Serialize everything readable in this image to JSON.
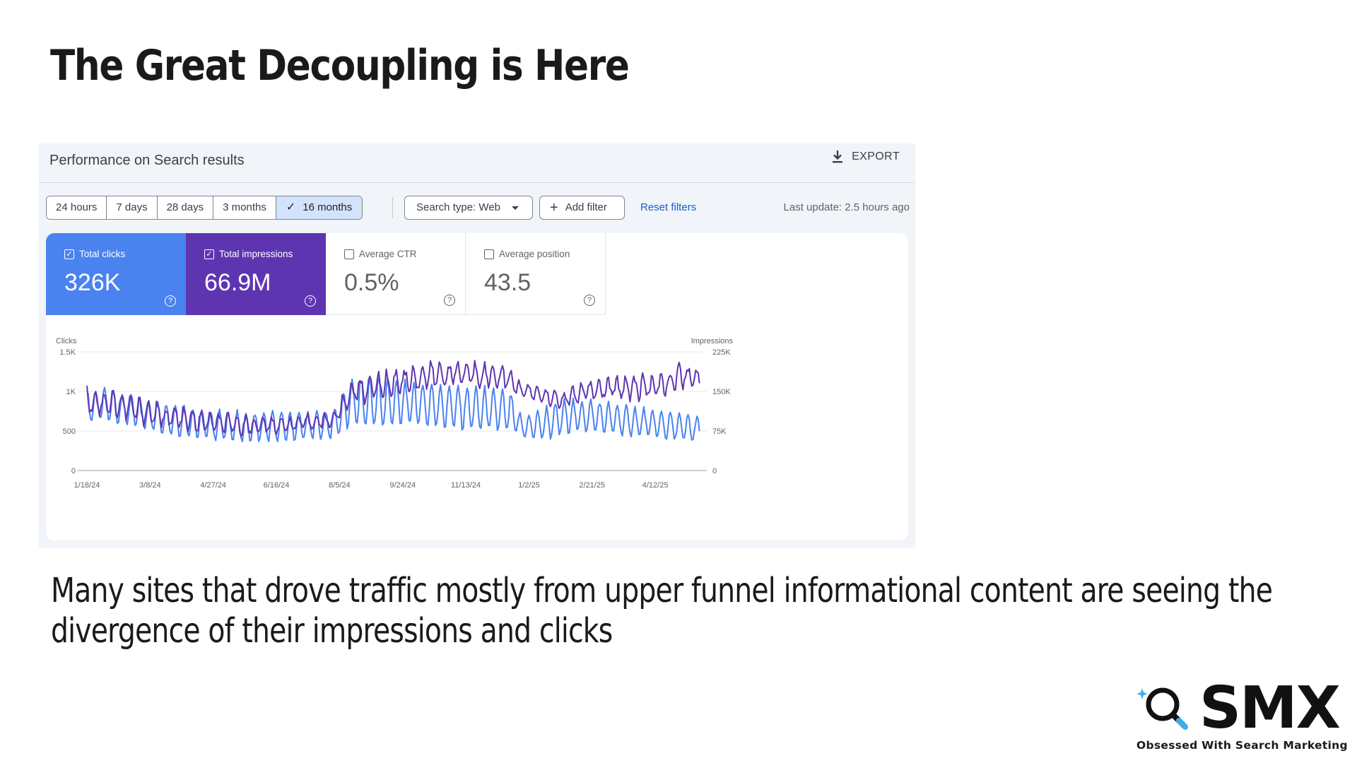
{
  "slide": {
    "title": "The Great Decoupling is Here",
    "body": "Many sites that drove traffic mostly from upper funnel informational content are seeing the divergence of their impressions and clicks"
  },
  "panel": {
    "title": "Performance on Search results",
    "export_label": "EXPORT",
    "date_ranges": [
      "24 hours",
      "7 days",
      "28 days",
      "3 months",
      "16 months"
    ],
    "active_range": "16 months",
    "search_type": "Search type: Web",
    "add_filter": "Add filter",
    "reset_filters": "Reset filters",
    "last_update": "Last update: 2.5 hours ago"
  },
  "metrics": {
    "clicks": {
      "label": "Total clicks",
      "value": "326K",
      "checked": true
    },
    "impressions": {
      "label": "Total impressions",
      "value": "66.9M",
      "checked": true
    },
    "ctr": {
      "label": "Average CTR",
      "value": "0.5%",
      "checked": false
    },
    "position": {
      "label": "Average position",
      "value": "43.5",
      "checked": false
    }
  },
  "colors": {
    "clicks": "#4a82f0",
    "impressions": "#5e35b1",
    "link": "#1a5fc9",
    "smx_accent": "#3bb0e6"
  },
  "chart_data": {
    "type": "line",
    "left_axis_label": "Clicks",
    "right_axis_label": "Impressions",
    "left_ticks": [
      "0",
      "500",
      "1K",
      "1.5K"
    ],
    "right_ticks": [
      "0",
      "75K",
      "150K",
      "225K"
    ],
    "left_ylim": [
      0,
      1500
    ],
    "right_ylim": [
      0,
      225000
    ],
    "x_ticks": [
      "1/18/24",
      "3/8/24",
      "4/27/24",
      "6/16/24",
      "8/5/24",
      "9/24/24",
      "11/13/24",
      "1/2/25",
      "2/21/25",
      "4/12/25"
    ],
    "x_tick_days": [
      0,
      50,
      100,
      150,
      200,
      250,
      300,
      350,
      400,
      450
    ],
    "total_days": 488,
    "series": [
      {
        "name": "Total clicks",
        "axis": "left",
        "baseline": [
          [
            0,
            820
          ],
          [
            15,
            830
          ],
          [
            30,
            780
          ],
          [
            50,
            700
          ],
          [
            70,
            640
          ],
          [
            90,
            590
          ],
          [
            110,
            560
          ],
          [
            130,
            550
          ],
          [
            150,
            555
          ],
          [
            170,
            560
          ],
          [
            195,
            585
          ],
          [
            210,
            870
          ],
          [
            240,
            860
          ],
          [
            270,
            835
          ],
          [
            310,
            780
          ],
          [
            335,
            740
          ],
          [
            345,
            540
          ],
          [
            365,
            600
          ],
          [
            380,
            690
          ],
          [
            400,
            690
          ],
          [
            430,
            620
          ],
          [
            460,
            570
          ],
          [
            485,
            520
          ]
        ],
        "weekly_amplitude": [
          [
            0,
            200
          ],
          [
            195,
            170
          ],
          [
            210,
            310
          ],
          [
            335,
            250
          ],
          [
            345,
            110
          ],
          [
            365,
            210
          ],
          [
            485,
            160
          ]
        ]
      },
      {
        "name": "Total impressions",
        "axis": "right",
        "baseline": [
          [
            0,
            132000
          ],
          [
            20,
            128000
          ],
          [
            40,
            115000
          ],
          [
            60,
            103000
          ],
          [
            90,
            92000
          ],
          [
            130,
            85000
          ],
          [
            160,
            87000
          ],
          [
            195,
            96000
          ],
          [
            210,
            150000
          ],
          [
            240,
            165000
          ],
          [
            270,
            180000
          ],
          [
            300,
            185000
          ],
          [
            330,
            178000
          ],
          [
            345,
            152000
          ],
          [
            365,
            140000
          ],
          [
            375,
            132000
          ],
          [
            395,
            150000
          ],
          [
            420,
            157000
          ],
          [
            455,
            160000
          ],
          [
            470,
            178000
          ],
          [
            485,
            175000
          ]
        ],
        "weekly_amplitude": [
          [
            0,
            22000
          ],
          [
            195,
            12000
          ],
          [
            210,
            22000
          ],
          [
            330,
            20000
          ],
          [
            345,
            10000
          ],
          [
            400,
            17000
          ],
          [
            485,
            24000
          ]
        ]
      }
    ]
  },
  "branding": {
    "logo_text": "SMX",
    "tagline": "Obsessed With Search Marketing"
  }
}
